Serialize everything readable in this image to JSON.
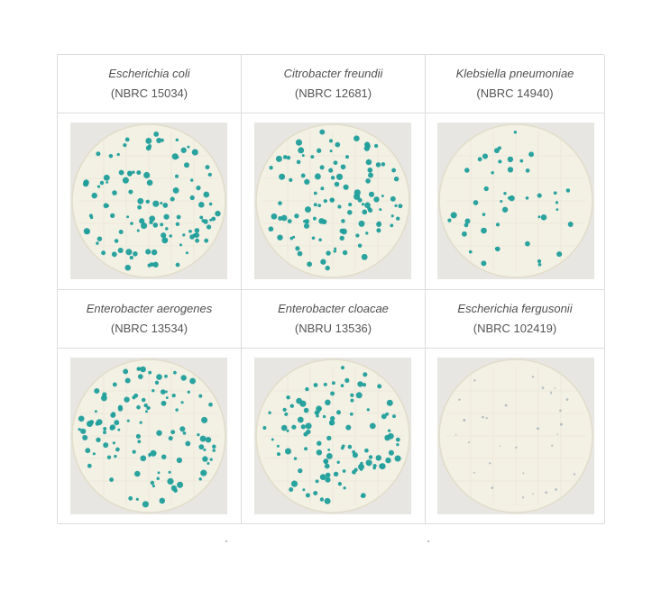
{
  "plates": [
    {
      "species": "Escherichia coli",
      "code": "(NBRC 15034)",
      "colony_color": "#1f9e9b",
      "colony_level": "dense"
    },
    {
      "species": "Citrobacter freundii",
      "code": "(NBRC 12681)",
      "colony_color": "#1f9e9b",
      "colony_level": "dense"
    },
    {
      "species": "Klebsiella pneumoniae",
      "code": "(NBRC 14940)",
      "colony_color": "#1f9e9b",
      "colony_level": "sparse"
    },
    {
      "species": "Enterobacter aerogenes",
      "code": "(NBRC 13534)",
      "colony_color": "#1f9e9b",
      "colony_level": "dense"
    },
    {
      "species": "Enterobacter cloacae",
      "code": "(NBRU 13536)",
      "colony_color": "#1f9e9b",
      "colony_level": "dense"
    },
    {
      "species": "Escherichia fergusonii",
      "code": "(NBRC 102419)",
      "colony_color": "#9aaab0",
      "colony_level": "faint"
    }
  ],
  "colors": {
    "plate_background": "#f3f0e4",
    "plate_rim": "#e1ddca",
    "photo_background": "#e7e6e2",
    "grid_line": "#dcdcdc"
  }
}
